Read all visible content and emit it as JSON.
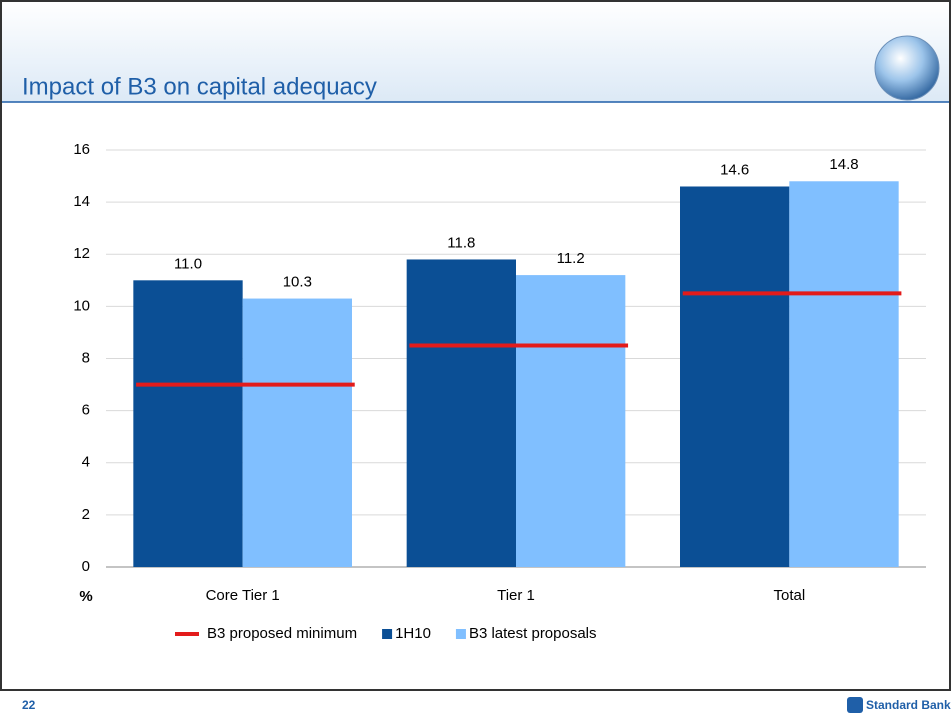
{
  "chart_data": {
    "type": "bar",
    "title": "Impact of B3 on capital adequacy",
    "y_axis_label": "%",
    "categories": [
      "Core Tier 1",
      "Tier 1",
      "Total"
    ],
    "series": [
      {
        "name": "B3 proposed minimum",
        "type": "segment",
        "color": "#e31b1b",
        "values": [
          7,
          8.5,
          10.5
        ]
      },
      {
        "name": "1H10",
        "type": "bar",
        "color": "#0b4f95",
        "values": [
          11,
          11.8,
          14.6
        ],
        "value_labels": [
          "11.0",
          "11.8",
          "14.6"
        ]
      },
      {
        "name": "B3 latest proposals",
        "type": "bar",
        "color": "#80bfff",
        "values": [
          10.3,
          11.2,
          14.8
        ]
      }
    ],
    "ylim": [
      0,
      16
    ],
    "yticks": [
      0,
      2,
      4,
      6,
      8,
      10,
      12,
      14,
      16
    ],
    "grid": true
  },
  "footer": {
    "page_number": "22",
    "logo": "Standard Bank"
  }
}
